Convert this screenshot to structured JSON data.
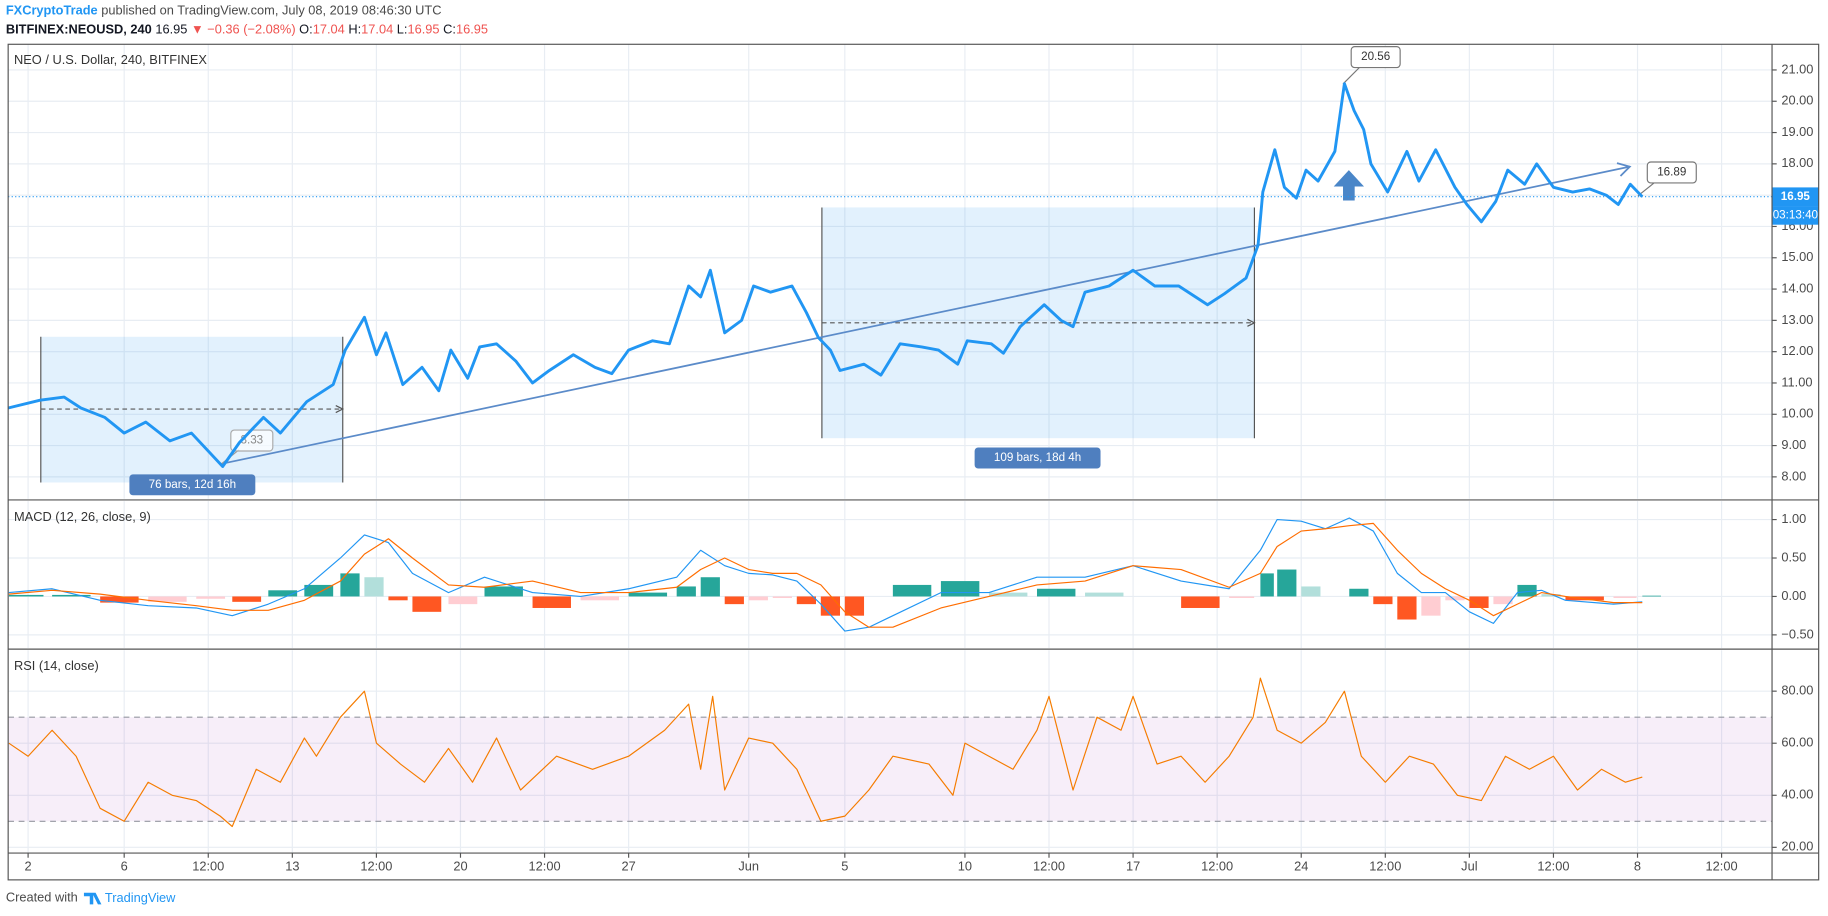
{
  "header": {
    "author": "FXCryptoTrade",
    "published": "published on TradingView.com, July 08, 2019 08:46:30 UTC",
    "symbol": "BITFINEX:NEOUSD, 240",
    "last": "16.95",
    "direction": "▼",
    "change": "−0.36 (−2.08%)",
    "ohlc": [
      {
        "label": "O:",
        "value": "17.04"
      },
      {
        "label": "H:",
        "value": "17.04"
      },
      {
        "label": "L:",
        "value": "16.95"
      },
      {
        "label": "C:",
        "value": "16.95"
      }
    ]
  },
  "chart_data": [
    {
      "type": "line",
      "title": "NEO / U.S. Dollar, 240, BITFINEX",
      "color": "#2196f3",
      "line_width": 2.5,
      "x": [
        1.17,
        2.5,
        3.5,
        4.2,
        5.2,
        6.0,
        6.9,
        7.9,
        8.8,
        10.1,
        10.8,
        11.8,
        12.5,
        13.6,
        14.7,
        15.2,
        16.0,
        16.5,
        16.9,
        17.6,
        18.4,
        19.1,
        19.6,
        20.3,
        20.8,
        21.5,
        22.3,
        23.0,
        23.7,
        24.7,
        25.6,
        26.3,
        27.0,
        28.0,
        28.7,
        29.5,
        30.0,
        30.4,
        31.0,
        31.7,
        32.2,
        32.9,
        33.8,
        34.4,
        34.9,
        35.4,
        35.8,
        36.8,
        37.5,
        38.3,
        39.2,
        39.9,
        40.7,
        41.1,
        42.1,
        42.6,
        43.3,
        44.3,
        45.0,
        45.5,
        46.0,
        47.0,
        48.0,
        48.9,
        49.9,
        51.1,
        51.8,
        52.7,
        53.2,
        53.4,
        53.9,
        54.3,
        54.8,
        55.2,
        55.7,
        56.4,
        56.8,
        57.2,
        57.6,
        57.9,
        58.6,
        59.4,
        59.9,
        60.6,
        61.4,
        61.9,
        62.5,
        63.1,
        63.6,
        64.3,
        64.8,
        65.5,
        66.3,
        67.0,
        67.7,
        68.2,
        68.7,
        69.2
      ],
      "values": [
        10.2,
        10.45,
        10.55,
        10.2,
        9.9,
        9.4,
        9.75,
        9.15,
        9.4,
        8.33,
        9.1,
        9.9,
        9.4,
        10.4,
        10.95,
        12.05,
        13.1,
        11.9,
        12.6,
        10.95,
        11.5,
        10.75,
        12.05,
        11.15,
        12.15,
        12.25,
        11.7,
        11.0,
        11.4,
        11.9,
        11.5,
        11.3,
        12.05,
        12.35,
        12.25,
        14.1,
        13.75,
        14.6,
        12.6,
        13.0,
        14.1,
        13.9,
        14.1,
        13.25,
        12.45,
        12.05,
        11.4,
        11.6,
        11.25,
        12.25,
        12.15,
        12.05,
        11.6,
        12.35,
        12.25,
        11.95,
        12.8,
        13.5,
        13.0,
        12.8,
        13.9,
        14.1,
        14.6,
        14.1,
        14.1,
        13.5,
        13.85,
        14.35,
        15.4,
        17.1,
        18.45,
        17.25,
        16.9,
        17.8,
        17.45,
        18.4,
        20.56,
        19.7,
        19.1,
        18.0,
        17.1,
        18.4,
        17.45,
        18.45,
        17.25,
        16.7,
        16.15,
        16.8,
        17.8,
        17.35,
        18.0,
        17.25,
        17.1,
        17.2,
        17.0,
        16.7,
        17.35,
        16.95
      ],
      "xlim": [
        1.17,
        74.6
      ],
      "ylim": [
        7.3,
        21.82
      ],
      "yticks": [
        {
          "value": 8,
          "label": "8.00"
        },
        {
          "value": 9,
          "label": "9.00"
        },
        {
          "value": 10,
          "label": "10.00"
        },
        {
          "value": 11,
          "label": "11.00"
        },
        {
          "value": 12,
          "label": "12.00"
        },
        {
          "value": 13,
          "label": "13.00"
        },
        {
          "value": 14,
          "label": "14.00"
        },
        {
          "value": 15,
          "label": "15.00"
        },
        {
          "value": 16,
          "label": "16.00"
        },
        {
          "value": 17,
          "label": "17.00"
        },
        {
          "value": 18,
          "label": "18.00"
        },
        {
          "value": 19,
          "label": "19.00"
        },
        {
          "value": 20,
          "label": "20.00"
        },
        {
          "value": 21,
          "label": "21.00"
        }
      ],
      "last_value": 16.95,
      "last_label": "16.95",
      "countdown": "03:13:40",
      "annotations": [
        "76 bars, 12d 16h",
        "109 bars, 18d 4h",
        "8.33",
        "20.56",
        "16.89"
      ]
    },
    {
      "type": "macd",
      "title": "MACD (12, 26, close, 9)",
      "x": [
        1.2,
        3,
        5,
        7,
        9,
        10.5,
        12,
        13.5,
        15,
        16,
        17,
        18,
        19.5,
        21,
        23,
        25,
        27,
        29,
        30,
        31,
        32,
        33,
        34,
        35,
        36,
        37,
        38,
        40,
        42,
        44,
        46,
        48,
        50,
        52,
        53.3,
        54,
        55,
        56,
        57,
        58,
        59,
        60,
        61,
        62,
        63,
        64,
        65,
        66,
        68,
        69.2
      ],
      "series": [
        {
          "color": "#2196f3",
          "values": [
            0.05,
            0.1,
            -0.05,
            -0.12,
            -0.15,
            -0.25,
            -0.1,
            0.1,
            0.5,
            0.8,
            0.7,
            0.3,
            0.05,
            0.25,
            0.05,
            0,
            0.1,
            0.25,
            0.6,
            0.4,
            0.3,
            0.28,
            0.2,
            -0.1,
            -0.45,
            -0.4,
            -0.25,
            0.05,
            0.05,
            0.25,
            0.25,
            0.4,
            0.2,
            0.1,
            0.6,
            1.0,
            0.98,
            0.88,
            1.02,
            0.85,
            0.3,
            0.05,
            0.05,
            -0.2,
            -0.35,
            0.05,
            0.08,
            -0.05,
            -0.1,
            -0.07
          ]
        },
        {
          "color": "#ff6d00",
          "values": [
            0.03,
            0.08,
            0.03,
            -0.05,
            -0.12,
            -0.18,
            -0.18,
            -0.05,
            0.2,
            0.55,
            0.75,
            0.5,
            0.15,
            0.12,
            0.2,
            0.05,
            0.05,
            0.12,
            0.35,
            0.5,
            0.35,
            0.3,
            0.3,
            0.15,
            -0.2,
            -0.4,
            -0.4,
            -0.15,
            0,
            0.15,
            0.2,
            0.4,
            0.35,
            0.12,
            0.3,
            0.65,
            0.85,
            0.88,
            0.92,
            0.95,
            0.6,
            0.3,
            0.1,
            -0.05,
            -0.25,
            -0.1,
            0.05,
            0,
            -0.08,
            -0.08
          ]
        }
      ],
      "histogram": [
        0.02,
        0.02,
        -0.08,
        -0.07,
        -0.03,
        -0.07,
        0.08,
        0.15,
        0.3,
        0.25,
        -0.05,
        -0.2,
        -0.1,
        0.13,
        -0.15,
        -0.05,
        0.05,
        0.13,
        0.25,
        -0.1,
        -0.05,
        -0.02,
        -0.1,
        -0.25,
        -0.25,
        0,
        0.15,
        0.2,
        0.05,
        0.1,
        0.05,
        0,
        -0.15,
        -0.02,
        0.3,
        0.35,
        0.13,
        0,
        0.1,
        -0.1,
        -0.3,
        -0.25,
        -0.05,
        -0.15,
        -0.1,
        0.15,
        0.03,
        -0.05,
        -0.02,
        0.01
      ],
      "histogram_colors": [
        "#26a69a",
        "#b2dfdb",
        "#ffcdd2",
        "#ff5722"
      ],
      "xlim": [
        1.17,
        74.6
      ],
      "ylim": [
        -0.67,
        1.24
      ],
      "yticks": [
        {
          "value": -0.5,
          "label": "−0.50"
        },
        {
          "value": 0,
          "label": "0.00"
        },
        {
          "value": 0.5,
          "label": "0.50"
        },
        {
          "value": 1,
          "label": "1.00"
        }
      ]
    },
    {
      "type": "line",
      "title": "RSI (14, close)",
      "color": "#f57c00",
      "line_width": 1,
      "x": [
        1.2,
        2,
        3,
        4,
        5,
        6,
        7,
        8,
        9,
        10,
        10.5,
        11.5,
        12.5,
        13.5,
        14,
        15,
        16,
        16.5,
        17.5,
        18.5,
        19.5,
        20.5,
        21.5,
        22.5,
        24,
        25.5,
        27,
        28.5,
        29.5,
        30,
        30.5,
        31,
        32,
        33,
        34,
        35,
        36,
        37,
        38,
        39.5,
        40.5,
        41,
        42,
        43,
        44,
        44.5,
        45.5,
        46.5,
        47.5,
        48,
        49,
        50,
        51,
        52,
        53,
        53.3,
        54,
        55,
        56,
        56.8,
        57.5,
        58.5,
        59.5,
        60.5,
        61.5,
        62.5,
        63.5,
        64.5,
        65.5,
        66.5,
        67.5,
        68.5,
        69.2
      ],
      "values": [
        60,
        55,
        65,
        55,
        35,
        30,
        45,
        40,
        38,
        32,
        28,
        50,
        45,
        62,
        55,
        70,
        80,
        60,
        52,
        45,
        58,
        45,
        62,
        42,
        55,
        50,
        55,
        65,
        75,
        50,
        78,
        42,
        62,
        60,
        50,
        30,
        32,
        42,
        55,
        52,
        40,
        60,
        55,
        50,
        65,
        78,
        42,
        70,
        65,
        78,
        52,
        55,
        45,
        55,
        70,
        85,
        65,
        60,
        68,
        80,
        55,
        45,
        55,
        52,
        40,
        38,
        55,
        50,
        55,
        42,
        50,
        45,
        47
      ],
      "bands": [
        30,
        70
      ],
      "band_color": "#9c27b0",
      "xlim": [
        1.17,
        74.6
      ],
      "ylim": [
        17.8,
        95.7
      ],
      "yticks": [
        {
          "value": 20,
          "label": "20.00"
        },
        {
          "value": 40,
          "label": "40.00"
        },
        {
          "value": 60,
          "label": "60.00"
        },
        {
          "value": 80,
          "label": "80.00"
        }
      ],
      "xticks": [
        2,
        6,
        {
          "value": 9.5,
          "label": "12:00"
        },
        13,
        {
          "value": 16.5,
          "label": "12:00"
        },
        20,
        {
          "value": 23.5,
          "label": "12:00"
        },
        27,
        {
          "value": 32,
          "label": "Jun"
        },
        {
          "value": 36,
          "label": "5"
        },
        {
          "value": 41,
          "label": "10"
        },
        {
          "value": 44.5,
          "label": "12:00"
        },
        {
          "value": 48,
          "label": "17"
        },
        {
          "value": 51.5,
          "label": "12:00"
        },
        {
          "value": 55,
          "label": "24"
        },
        {
          "value": 58.5,
          "label": "12:00"
        },
        {
          "value": 62,
          "label": "Jul"
        },
        {
          "value": 65.5,
          "label": "12:00"
        },
        {
          "value": 69,
          "label": "8"
        },
        {
          "value": 72.5,
          "label": "12:00"
        }
      ]
    }
  ],
  "footer": {
    "text": "Created with",
    "brand": "TradingView"
  }
}
